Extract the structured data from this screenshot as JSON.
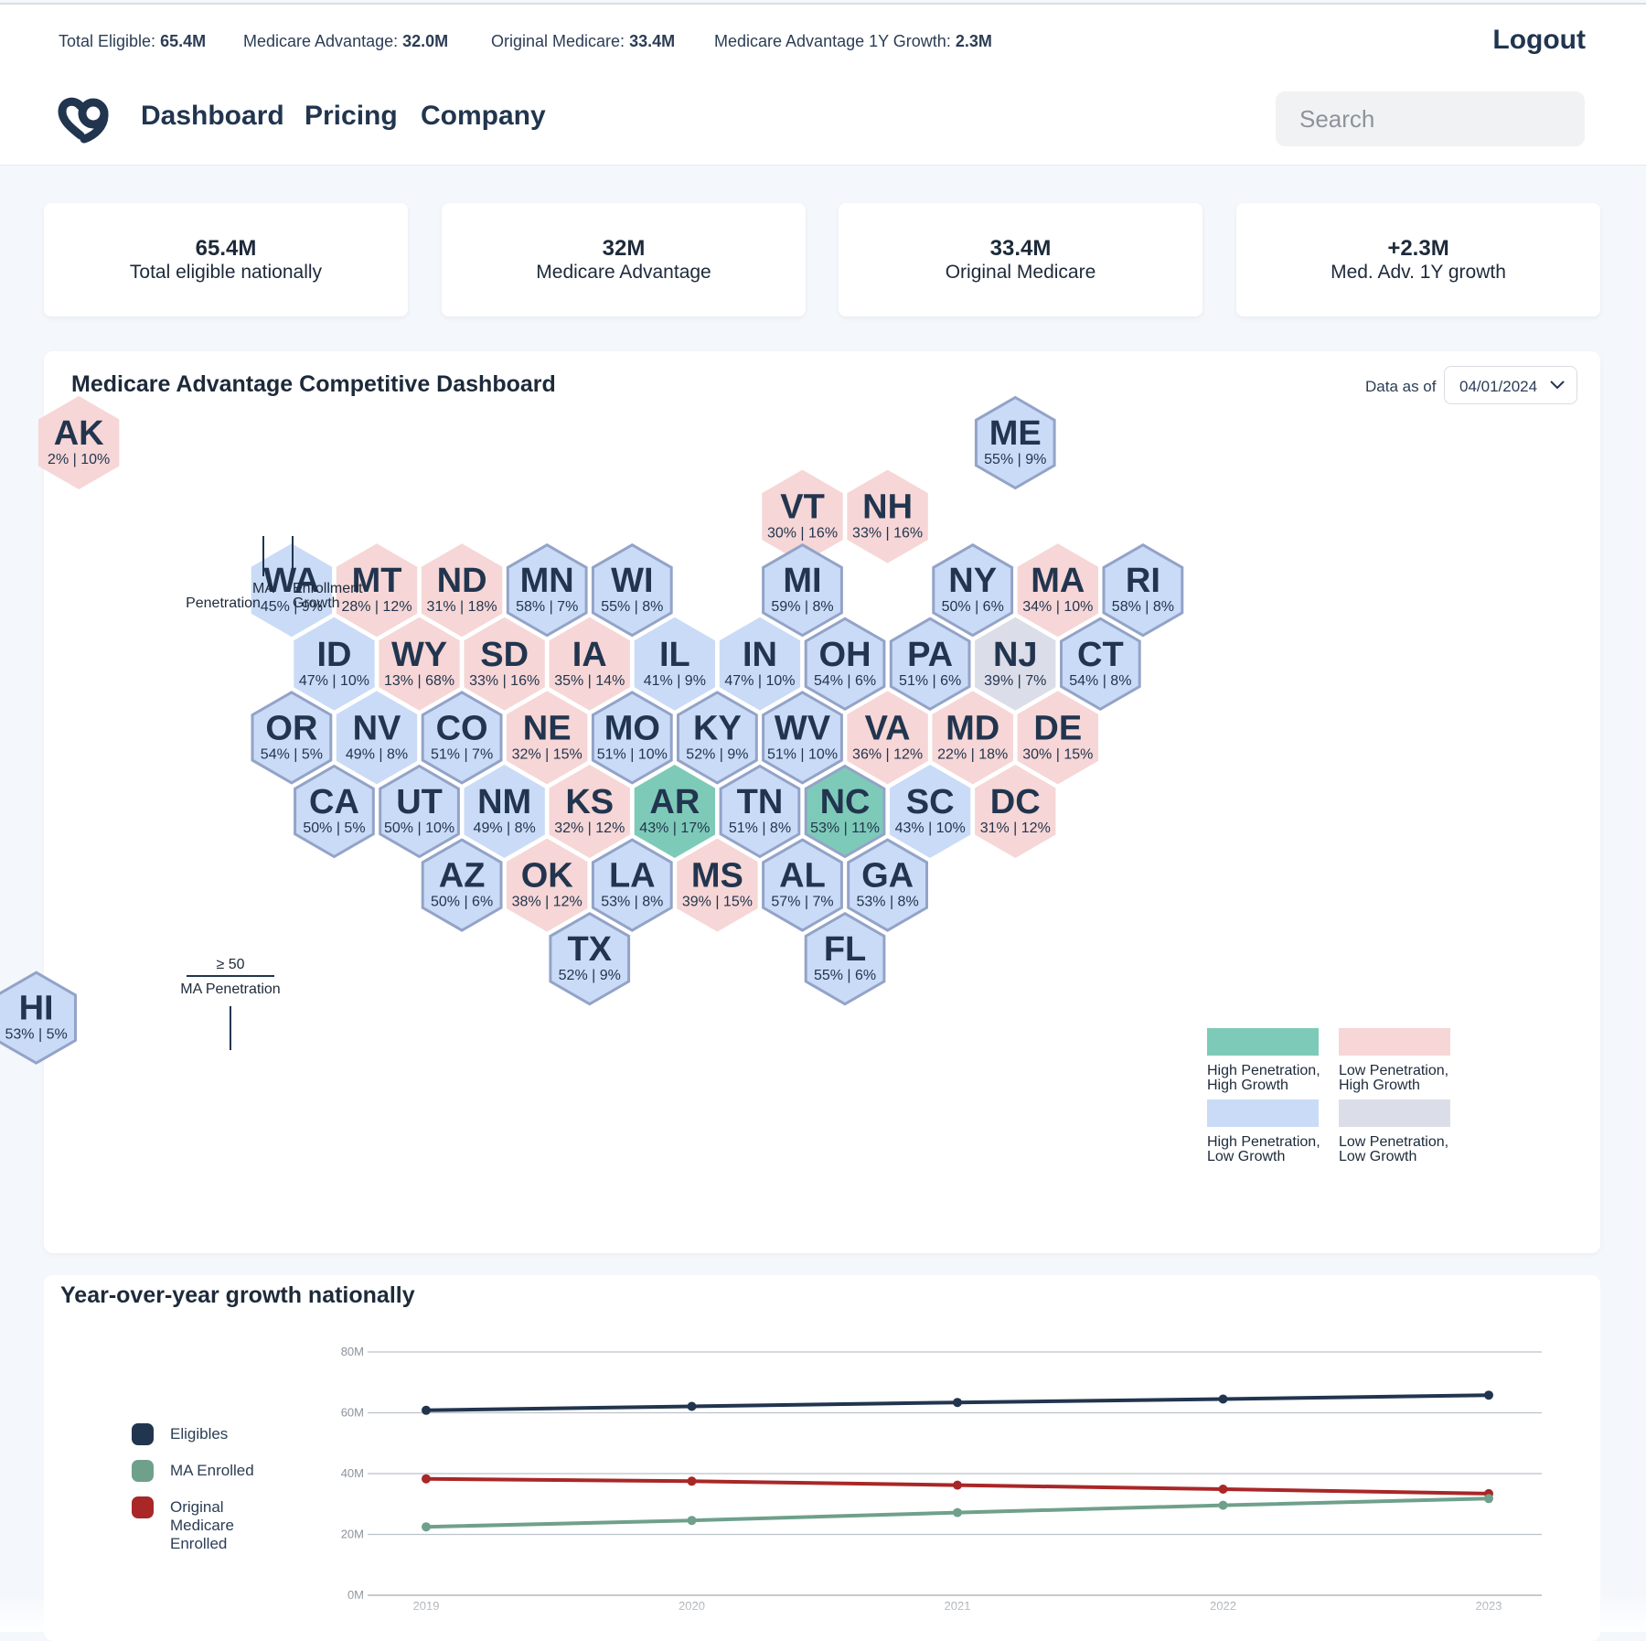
{
  "topbar": {
    "stats": [
      {
        "label": "Total Eligible:",
        "value": "65.4M"
      },
      {
        "label": "Medicare Advantage:",
        "value": "32.0M"
      },
      {
        "label": "Original Medicare:",
        "value": "33.4M"
      },
      {
        "label": "Medicare Advantage 1Y Growth:",
        "value": "2.3M"
      }
    ],
    "logout": "Logout"
  },
  "nav": {
    "links": [
      "Dashboard",
      "Pricing",
      "Company"
    ],
    "search_placeholder": "Search"
  },
  "cards": [
    {
      "value": "65.4M",
      "label": "Total eligible nationally"
    },
    {
      "value": "32M",
      "label": "Medicare Advantage"
    },
    {
      "value": "33.4M",
      "label": "Original Medicare"
    },
    {
      "value": "+2.3M",
      "label": "Med. Adv. 1Y growth"
    }
  ],
  "map": {
    "title": "Medicare Advantage Competitive Dashboard",
    "as_of_label": "Data as of",
    "as_of_date": "04/01/2024",
    "annotations": {
      "ma_penetration_1": "MA",
      "ma_penetration_2": "Penetration",
      "enrollment_growth_1": "Enrollment",
      "enrollment_growth_2": "Growth",
      "threshold": "≥ 50",
      "threshold_label": "MA Penetration"
    },
    "category_colors": {
      "high-high": "#7ecab8",
      "low-high": "#f6d6d6",
      "high-low": "#c9dbf6",
      "low-low": "#dbdde8"
    },
    "legend": [
      {
        "category": "high-high",
        "line1": "High Penetration,",
        "line2": "High Growth"
      },
      {
        "category": "low-high",
        "line1": "Low Penetration,",
        "line2": "High Growth"
      },
      {
        "category": "high-low",
        "line1": "High Penetration,",
        "line2": "Low Growth"
      },
      {
        "category": "low-low",
        "line1": "Low Penetration,",
        "line2": "Low Growth"
      }
    ],
    "states": [
      {
        "abbr": "AK",
        "pen": "2%",
        "growth": "10%",
        "category": "low-high",
        "outlined": false
      },
      {
        "abbr": "ME",
        "pen": "55%",
        "growth": "9%",
        "category": "high-low",
        "outlined": true
      },
      {
        "abbr": "VT",
        "pen": "30%",
        "growth": "16%",
        "category": "low-high",
        "outlined": false
      },
      {
        "abbr": "NH",
        "pen": "33%",
        "growth": "16%",
        "category": "low-high",
        "outlined": false
      },
      {
        "abbr": "WA",
        "pen": "45%",
        "growth": "9%",
        "category": "high-low",
        "outlined": false
      },
      {
        "abbr": "MT",
        "pen": "28%",
        "growth": "12%",
        "category": "low-high",
        "outlined": false
      },
      {
        "abbr": "ND",
        "pen": "31%",
        "growth": "18%",
        "category": "low-high",
        "outlined": false
      },
      {
        "abbr": "MN",
        "pen": "58%",
        "growth": "7%",
        "category": "high-low",
        "outlined": true
      },
      {
        "abbr": "WI",
        "pen": "55%",
        "growth": "8%",
        "category": "high-low",
        "outlined": true
      },
      {
        "abbr": "MI",
        "pen": "59%",
        "growth": "8%",
        "category": "high-low",
        "outlined": true
      },
      {
        "abbr": "NY",
        "pen": "50%",
        "growth": "6%",
        "category": "high-low",
        "outlined": true
      },
      {
        "abbr": "MA",
        "pen": "34%",
        "growth": "10%",
        "category": "low-high",
        "outlined": false
      },
      {
        "abbr": "RI",
        "pen": "58%",
        "growth": "8%",
        "category": "high-low",
        "outlined": true
      },
      {
        "abbr": "ID",
        "pen": "47%",
        "growth": "10%",
        "category": "high-low",
        "outlined": false
      },
      {
        "abbr": "WY",
        "pen": "13%",
        "growth": "68%",
        "category": "low-high",
        "outlined": false
      },
      {
        "abbr": "SD",
        "pen": "33%",
        "growth": "16%",
        "category": "low-high",
        "outlined": false
      },
      {
        "abbr": "IA",
        "pen": "35%",
        "growth": "14%",
        "category": "low-high",
        "outlined": false
      },
      {
        "abbr": "IL",
        "pen": "41%",
        "growth": "9%",
        "category": "high-low",
        "outlined": false
      },
      {
        "abbr": "IN",
        "pen": "47%",
        "growth": "10%",
        "category": "high-low",
        "outlined": false
      },
      {
        "abbr": "OH",
        "pen": "54%",
        "growth": "6%",
        "category": "high-low",
        "outlined": true
      },
      {
        "abbr": "PA",
        "pen": "51%",
        "growth": "6%",
        "category": "high-low",
        "outlined": true
      },
      {
        "abbr": "NJ",
        "pen": "39%",
        "growth": "7%",
        "category": "low-low",
        "outlined": false
      },
      {
        "abbr": "CT",
        "pen": "54%",
        "growth": "8%",
        "category": "high-low",
        "outlined": true
      },
      {
        "abbr": "OR",
        "pen": "54%",
        "growth": "5%",
        "category": "high-low",
        "outlined": true
      },
      {
        "abbr": "NV",
        "pen": "49%",
        "growth": "8%",
        "category": "high-low",
        "outlined": false
      },
      {
        "abbr": "CO",
        "pen": "51%",
        "growth": "7%",
        "category": "high-low",
        "outlined": true
      },
      {
        "abbr": "NE",
        "pen": "32%",
        "growth": "15%",
        "category": "low-high",
        "outlined": false
      },
      {
        "abbr": "MO",
        "pen": "51%",
        "growth": "10%",
        "category": "high-low",
        "outlined": true
      },
      {
        "abbr": "KY",
        "pen": "52%",
        "growth": "9%",
        "category": "high-low",
        "outlined": true
      },
      {
        "abbr": "WV",
        "pen": "51%",
        "growth": "10%",
        "category": "high-low",
        "outlined": true
      },
      {
        "abbr": "VA",
        "pen": "36%",
        "growth": "12%",
        "category": "low-high",
        "outlined": false
      },
      {
        "abbr": "MD",
        "pen": "22%",
        "growth": "18%",
        "category": "low-high",
        "outlined": false
      },
      {
        "abbr": "DE",
        "pen": "30%",
        "growth": "15%",
        "category": "low-high",
        "outlined": false
      },
      {
        "abbr": "CA",
        "pen": "50%",
        "growth": "5%",
        "category": "high-low",
        "outlined": true
      },
      {
        "abbr": "UT",
        "pen": "50%",
        "growth": "10%",
        "category": "high-low",
        "outlined": true
      },
      {
        "abbr": "NM",
        "pen": "49%",
        "growth": "8%",
        "category": "high-low",
        "outlined": false
      },
      {
        "abbr": "KS",
        "pen": "32%",
        "growth": "12%",
        "category": "low-high",
        "outlined": false
      },
      {
        "abbr": "AR",
        "pen": "43%",
        "growth": "17%",
        "category": "high-high",
        "outlined": false
      },
      {
        "abbr": "TN",
        "pen": "51%",
        "growth": "8%",
        "category": "high-low",
        "outlined": true
      },
      {
        "abbr": "NC",
        "pen": "53%",
        "growth": "11%",
        "category": "high-high",
        "outlined": true
      },
      {
        "abbr": "SC",
        "pen": "43%",
        "growth": "10%",
        "category": "high-low",
        "outlined": false
      },
      {
        "abbr": "DC",
        "pen": "31%",
        "growth": "12%",
        "category": "low-high",
        "outlined": false
      },
      {
        "abbr": "AZ",
        "pen": "50%",
        "growth": "6%",
        "category": "high-low",
        "outlined": true
      },
      {
        "abbr": "OK",
        "pen": "38%",
        "growth": "12%",
        "category": "low-high",
        "outlined": false
      },
      {
        "abbr": "LA",
        "pen": "53%",
        "growth": "8%",
        "category": "high-low",
        "outlined": true
      },
      {
        "abbr": "MS",
        "pen": "39%",
        "growth": "15%",
        "category": "low-high",
        "outlined": false
      },
      {
        "abbr": "AL",
        "pen": "57%",
        "growth": "7%",
        "category": "high-low",
        "outlined": true
      },
      {
        "abbr": "GA",
        "pen": "53%",
        "growth": "8%",
        "category": "high-low",
        "outlined": true
      },
      {
        "abbr": "TX",
        "pen": "52%",
        "growth": "9%",
        "category": "high-low",
        "outlined": true
      },
      {
        "abbr": "FL",
        "pen": "55%",
        "growth": "6%",
        "category": "high-low",
        "outlined": true
      },
      {
        "abbr": "HI",
        "pen": "53%",
        "growth": "5%",
        "category": "high-low",
        "outlined": true
      }
    ]
  },
  "chart": {
    "title": "Year-over-year growth nationally",
    "legend": [
      {
        "name": "Eligibles",
        "color": "#22354f"
      },
      {
        "name": "MA Enrolled",
        "color": "#6fa08b"
      },
      {
        "name": "Original Medicare Enrolled",
        "color": "#a92727"
      }
    ]
  },
  "chart_data": {
    "type": "line",
    "title": "Year-over-year growth nationally",
    "x": [
      "2019",
      "2020",
      "2021",
      "2022",
      "2023"
    ],
    "yticks": [
      "0M",
      "20M",
      "40M",
      "60M",
      "80M"
    ],
    "ylim": [
      0,
      80
    ],
    "y_unit": "M",
    "grid": true,
    "legend_position": "left",
    "series": [
      {
        "name": "Eligibles",
        "color": "#22354f",
        "values": [
          60.8,
          62.1,
          63.4,
          64.5,
          65.8
        ]
      },
      {
        "name": "MA Enrolled",
        "color": "#6fa08b",
        "values": [
          22.5,
          24.6,
          27.2,
          29.6,
          31.8
        ]
      },
      {
        "name": "Original Medicare Enrolled",
        "color": "#a92727",
        "values": [
          38.3,
          37.5,
          36.2,
          34.9,
          33.4
        ]
      }
    ]
  }
}
